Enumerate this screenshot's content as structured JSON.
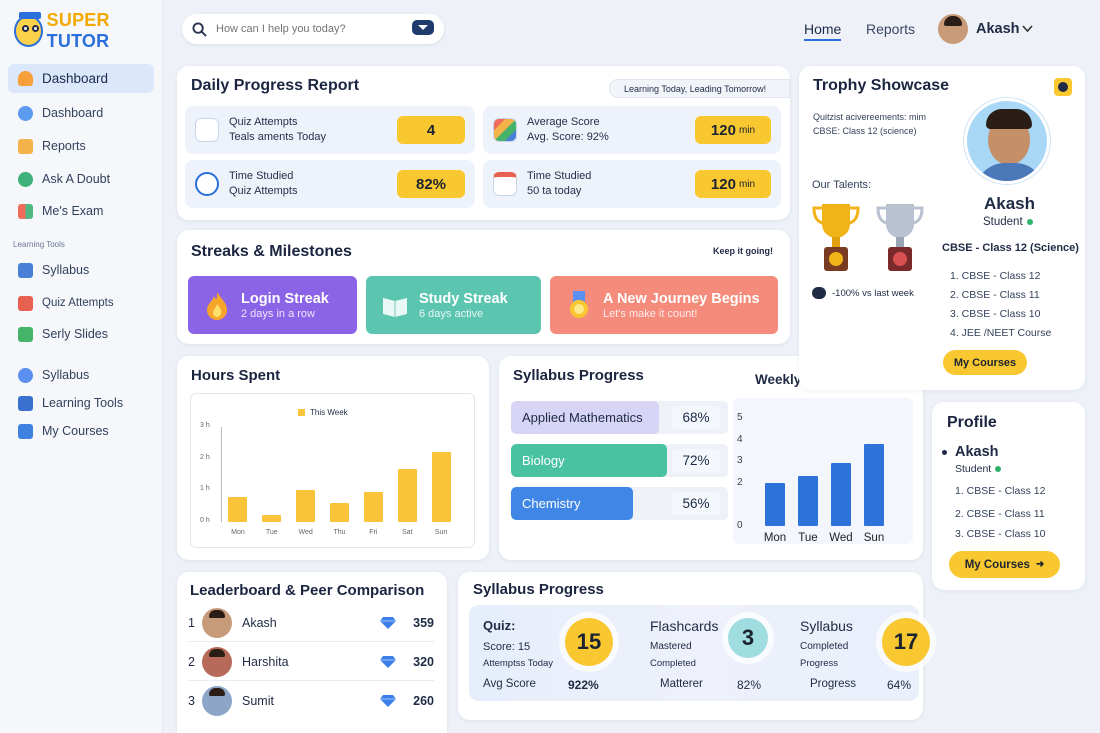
{
  "brand": {
    "name_a": "SUPER",
    "name_b": "TUTOR"
  },
  "sidebar": {
    "active": "Dashboard",
    "items": [
      {
        "label": "Dashboard",
        "icon": "dashboard-icon"
      },
      {
        "label": "Reports",
        "icon": "reports-icon"
      },
      {
        "label": "Ask A Doubt",
        "icon": "ask-doubt-icon"
      },
      {
        "label": "Me's Exam",
        "icon": "exam-icon"
      }
    ],
    "section_label": "Learning Tools",
    "tools": [
      {
        "label": "Syllabus",
        "icon": "syllabus-icon"
      },
      {
        "label": "Quiz Attempts",
        "icon": "quiz-icon"
      },
      {
        "label": "Serly Slides",
        "icon": "slides-icon"
      },
      {
        "label": "Syllabus",
        "icon": "syllabus-icon"
      },
      {
        "label": "Learning Tools",
        "icon": "tools-icon"
      },
      {
        "label": "My Courses",
        "icon": "courses-icon"
      }
    ]
  },
  "topbar": {
    "search_placeholder": "How can I help you today?",
    "nav": [
      "Home",
      "Reports"
    ],
    "active_nav": "Home",
    "user_name": "Akash"
  },
  "daily": {
    "title": "Daily Progress Report",
    "tag": "Learning Today, Leading Tomorrow!",
    "tiles": [
      {
        "line1": "Quiz Attempts",
        "line2": "Teals aments Today",
        "value": "4",
        "unit": ""
      },
      {
        "line1": "Average Score",
        "line2": "Avg. Score: 92%",
        "value": "120",
        "unit": "min"
      },
      {
        "line1": "Time Studied",
        "line2": "Quiz Attempts",
        "value": "82%",
        "unit": ""
      },
      {
        "line1": "Time Studied",
        "line2": "50 ta today",
        "value": "120",
        "unit": "min"
      }
    ]
  },
  "streaks": {
    "title": "Streaks & Milestones",
    "note": "Keep it going!",
    "items": [
      {
        "title": "Login Streak",
        "sub": "2 days in a row",
        "color": "#8a63e6"
      },
      {
        "title": "Study Streak",
        "sub": "6 days active",
        "color": "#5cc5b0"
      },
      {
        "title": "A New Journey Begins",
        "sub": "Let's make it count!",
        "color": "#f48b7b"
      }
    ]
  },
  "hours": {
    "title": "Hours Spent",
    "chart_data": {
      "type": "bar",
      "legend": "This Week",
      "categories": [
        "Mon",
        "Tue",
        "Wed",
        "Thu",
        "Fri",
        "Sat",
        "Sun"
      ],
      "values": [
        0.7,
        0.2,
        0.9,
        0.55,
        0.85,
        1.5,
        2.0
      ],
      "y_ticks": [
        "3 h",
        "2 h",
        "1 h",
        "0 h"
      ],
      "ylim": [
        0,
        2.7
      ]
    }
  },
  "syllabus": {
    "title": "Syllabus Progress",
    "items": [
      {
        "label": "Applied Mathematics",
        "pct": 68,
        "pct_text": "68%",
        "color": "#d8d4f6"
      },
      {
        "label": "Biology",
        "pct": 72,
        "pct_text": "72%",
        "color": "#49c2a2"
      },
      {
        "label": "Chemistry",
        "pct": 56,
        "pct_text": "56%",
        "color": "#3f86e6"
      }
    ]
  },
  "weekly": {
    "title": "Weekly Study Hours",
    "chart_data": {
      "type": "bar",
      "categories": [
        "Mon",
        "Tue",
        "Wed",
        "Sun"
      ],
      "values": [
        2.0,
        2.3,
        2.9,
        3.8
      ],
      "y_ticks": [
        "5",
        "4",
        "3",
        "2",
        "0"
      ],
      "ylim": [
        0,
        5
      ]
    }
  },
  "trophy": {
    "title": "Trophy Showcase",
    "info_line1": "Quitzist acivereements: mim",
    "info_line2": "CBSE: Class 12 (science)",
    "talents_label": "Our Talents:",
    "delta": "-100% vs last week",
    "name": "Akash",
    "role": "Student",
    "class": "CBSE - Class 12 (Science)",
    "courses": [
      "1. CBSE - Class 12",
      "2. CBSE - Class 11",
      "3. CBSE - Class 10",
      "4. JEE /NEET Course"
    ],
    "button": "My Courses"
  },
  "profile": {
    "title": "Profile",
    "name": "Akash",
    "role": "Student",
    "courses": [
      "1. CBSE - Class 12",
      "2. CBSE - Class 11",
      "3. CBSE - Class 10"
    ],
    "button": "My Courses"
  },
  "leaderboard": {
    "title": "Leaderboard & Peer Comparison",
    "rows": [
      {
        "rank": "1",
        "name": "Akash",
        "score": "359"
      },
      {
        "rank": "2",
        "name": "Harshita",
        "score": "320"
      },
      {
        "rank": "3",
        "name": "Sumit",
        "score": "260"
      }
    ]
  },
  "progress2": {
    "title": "Syllabus Progress",
    "blocks": [
      {
        "title": "Quiz:",
        "l1": "Score: 15",
        "l2": "Attemptss Today",
        "big": "15",
        "foot_label": "Avg Score",
        "foot_value": "922%",
        "circle": "#f9c72f"
      },
      {
        "title": "Flashcards",
        "l1": "Mastered",
        "l2": "Completed",
        "big": "3",
        "foot_label": "Matterer",
        "foot_value": "82%",
        "circle": "#9fdde0"
      },
      {
        "title": "Syllabus",
        "l1": "Completed",
        "l2": "Progress",
        "big": "17",
        "foot_label": "Progress",
        "foot_value": "64%",
        "circle": "#f9c72f"
      }
    ]
  }
}
